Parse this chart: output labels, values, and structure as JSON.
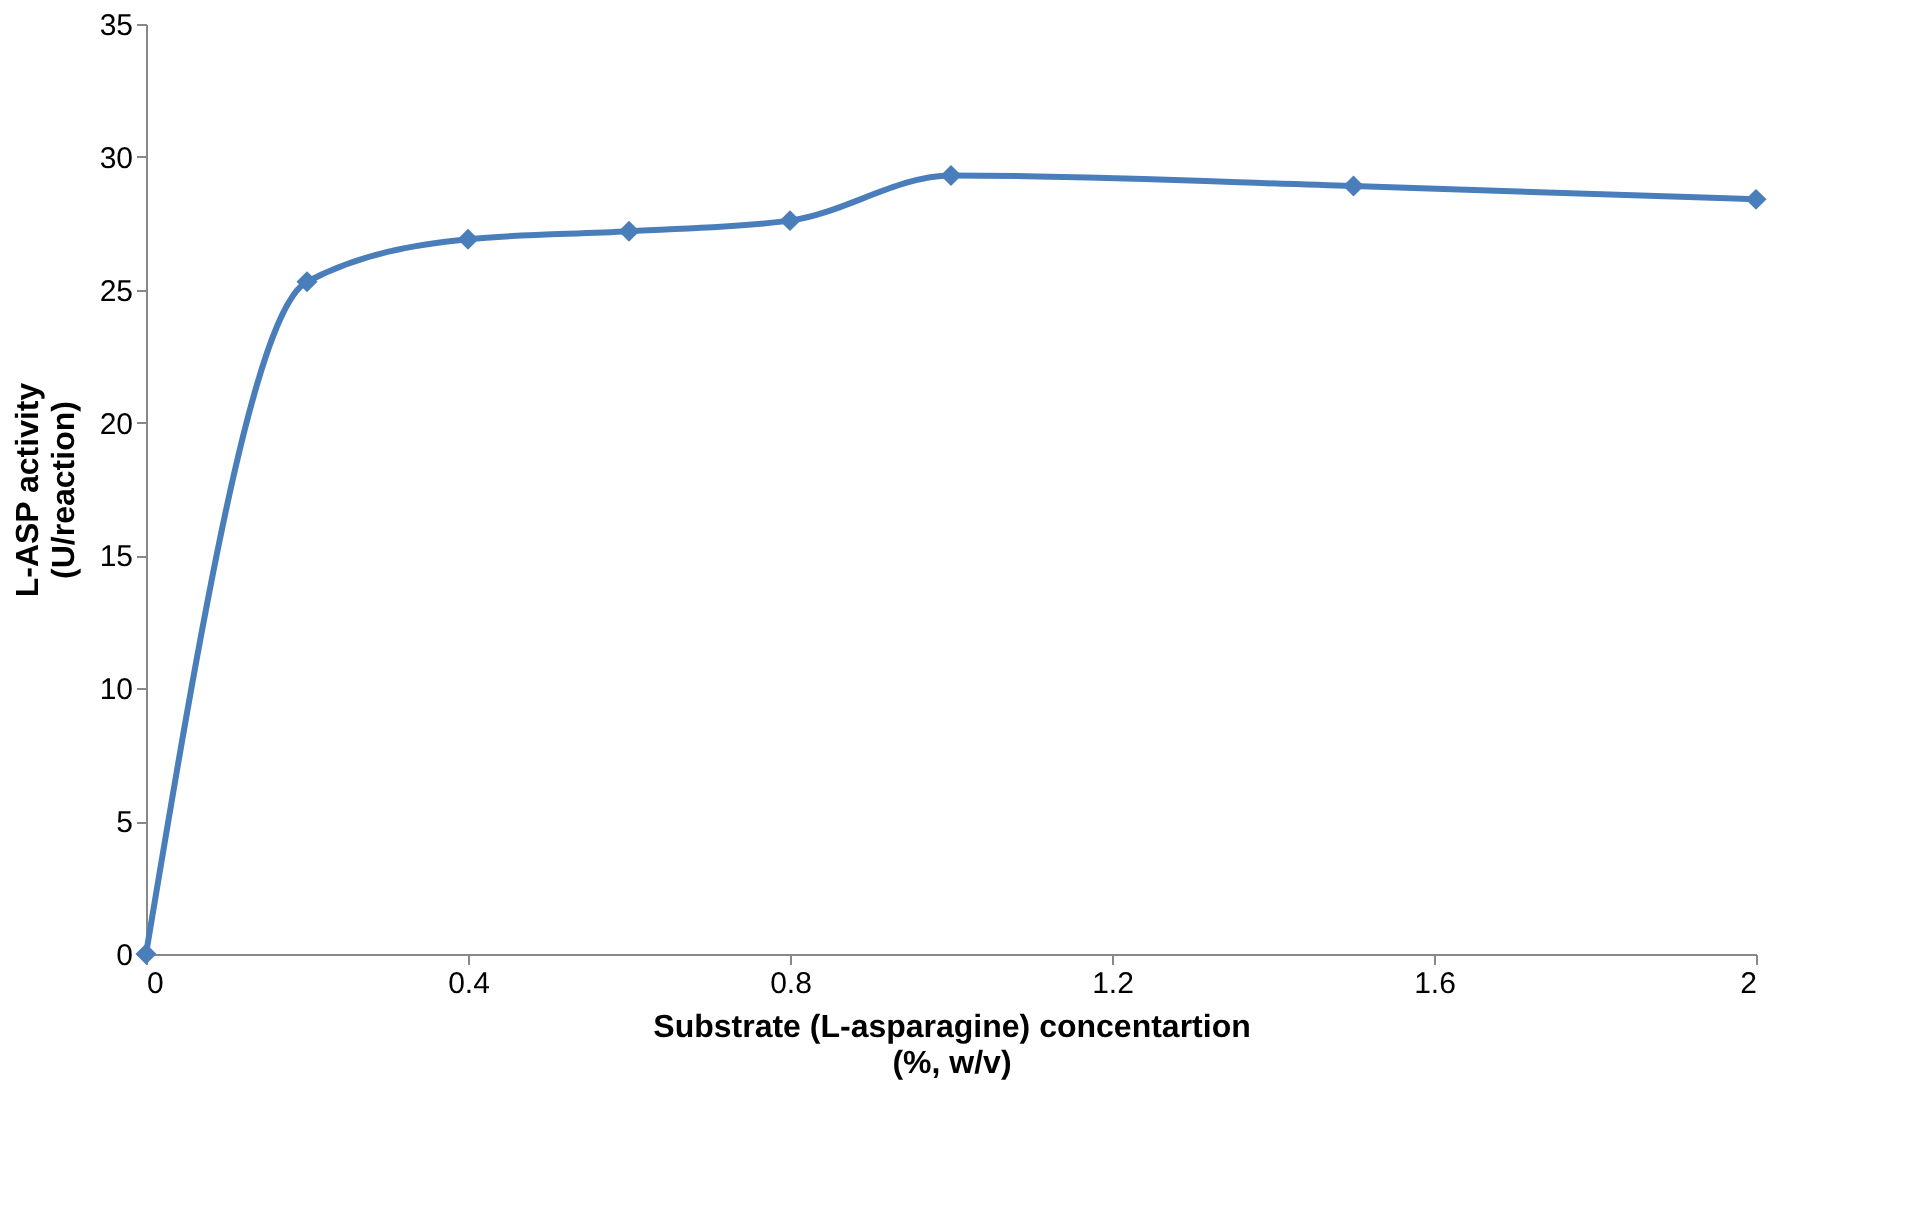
{
  "chart_data": {
    "type": "line",
    "xlabel": "Substrate (L-asparagine) concentartion\n(%, w/v)",
    "ylabel": "L-ASP activity\n(U/reaction)",
    "x": [
      0,
      0.2,
      0.4,
      0.6,
      0.8,
      1.0,
      1.5,
      2.0
    ],
    "series": [
      {
        "color": "#4a7ebb",
        "values": [
          0,
          25.3,
          26.9,
          27.2,
          27.6,
          29.3,
          28.9,
          28.4
        ]
      }
    ],
    "xlim": [
      0,
      2
    ],
    "xticks": [
      0,
      0.4,
      0.8,
      1.2,
      1.6,
      2
    ],
    "ylim": [
      0,
      35
    ],
    "yticks": [
      0,
      5,
      10,
      15,
      20,
      25,
      30,
      35
    ],
    "marker": "diamond",
    "line_style": "solid",
    "grid": false
  }
}
